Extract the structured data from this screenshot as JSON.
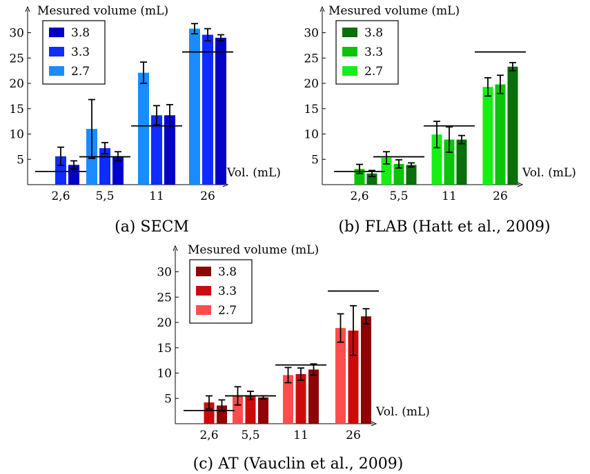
{
  "chart_data": [
    {
      "type": "bar",
      "caption": "(a) SECM",
      "ylabel": "Mesured volume (mL)",
      "xlabel": "Vol.  (mL)",
      "categories": [
        "2,6",
        "5,5",
        "11",
        "26"
      ],
      "true_volumes": [
        2.6,
        5.5,
        11.6,
        26.2
      ],
      "yticks": [
        5,
        10,
        15,
        20,
        25,
        30
      ],
      "ylim": [
        0,
        32
      ],
      "legend_position": "top-left",
      "grid": false,
      "series": [
        {
          "name": "2.7",
          "color": "#1a8cff",
          "values": [
            0,
            11.0,
            22.1,
            30.8
          ],
          "errors": [
            0,
            5.8,
            2.1,
            1.0
          ]
        },
        {
          "name": "3.3",
          "color": "#0f2cff",
          "values": [
            5.6,
            7.2,
            13.7,
            29.6
          ],
          "errors": [
            1.8,
            1.1,
            1.9,
            1.2
          ]
        },
        {
          "name": "3.8",
          "color": "#0000c8",
          "values": [
            3.9,
            5.6,
            13.7,
            29.0
          ],
          "errors": [
            0.8,
            0.9,
            2.1,
            0.6
          ]
        }
      ]
    },
    {
      "type": "bar",
      "caption": "(b) FLAB (Hatt et al., 2009)",
      "ylabel": "Mesured volume (mL)",
      "xlabel": "Vol.  (mL)",
      "categories": [
        "2,6",
        "5,5",
        "11",
        "26"
      ],
      "true_volumes": [
        2.6,
        5.5,
        11.6,
        26.2
      ],
      "yticks": [
        5,
        10,
        15,
        20,
        25,
        30
      ],
      "ylim": [
        0,
        32
      ],
      "legend_position": "top-left",
      "grid": false,
      "series": [
        {
          "name": "2.7",
          "color": "#14f014",
          "values": [
            0,
            5.3,
            9.9,
            19.3
          ],
          "errors": [
            0,
            1.2,
            2.6,
            1.8
          ]
        },
        {
          "name": "3.3",
          "color": "#0ac30a",
          "values": [
            3.1,
            4.1,
            8.9,
            19.8
          ],
          "errors": [
            0.9,
            0.8,
            2.5,
            1.8
          ]
        },
        {
          "name": "3.8",
          "color": "#0a6e0a",
          "values": [
            2.2,
            3.9,
            8.9,
            23.3
          ],
          "errors": [
            0.6,
            0.4,
            0.8,
            0.8
          ]
        }
      ]
    },
    {
      "type": "bar",
      "caption": "(c) AT (Vauclin et al., 2009)",
      "ylabel": "Mesured volume (mL)",
      "xlabel": "Vol.  (mL)",
      "categories": [
        "2,6",
        "5,5",
        "11",
        "26"
      ],
      "true_volumes": [
        2.6,
        5.5,
        11.6,
        26.2
      ],
      "yticks": [
        5,
        10,
        15,
        20,
        25,
        30
      ],
      "ylim": [
        0,
        32
      ],
      "legend_position": "top-left",
      "grid": false,
      "series": [
        {
          "name": "2.7",
          "color": "#ff4d4d",
          "values": [
            0,
            5.5,
            9.6,
            18.9
          ],
          "errors": [
            0,
            1.8,
            1.5,
            2.8
          ]
        },
        {
          "name": "3.3",
          "color": "#cd0a0a",
          "values": [
            4.2,
            5.6,
            9.8,
            18.4
          ],
          "errors": [
            1.3,
            0.8,
            1.2,
            4.9
          ]
        },
        {
          "name": "3.8",
          "color": "#8c0505",
          "values": [
            3.6,
            5.2,
            10.7,
            21.2
          ],
          "errors": [
            1.1,
            0.3,
            1.1,
            1.5
          ]
        }
      ]
    }
  ]
}
